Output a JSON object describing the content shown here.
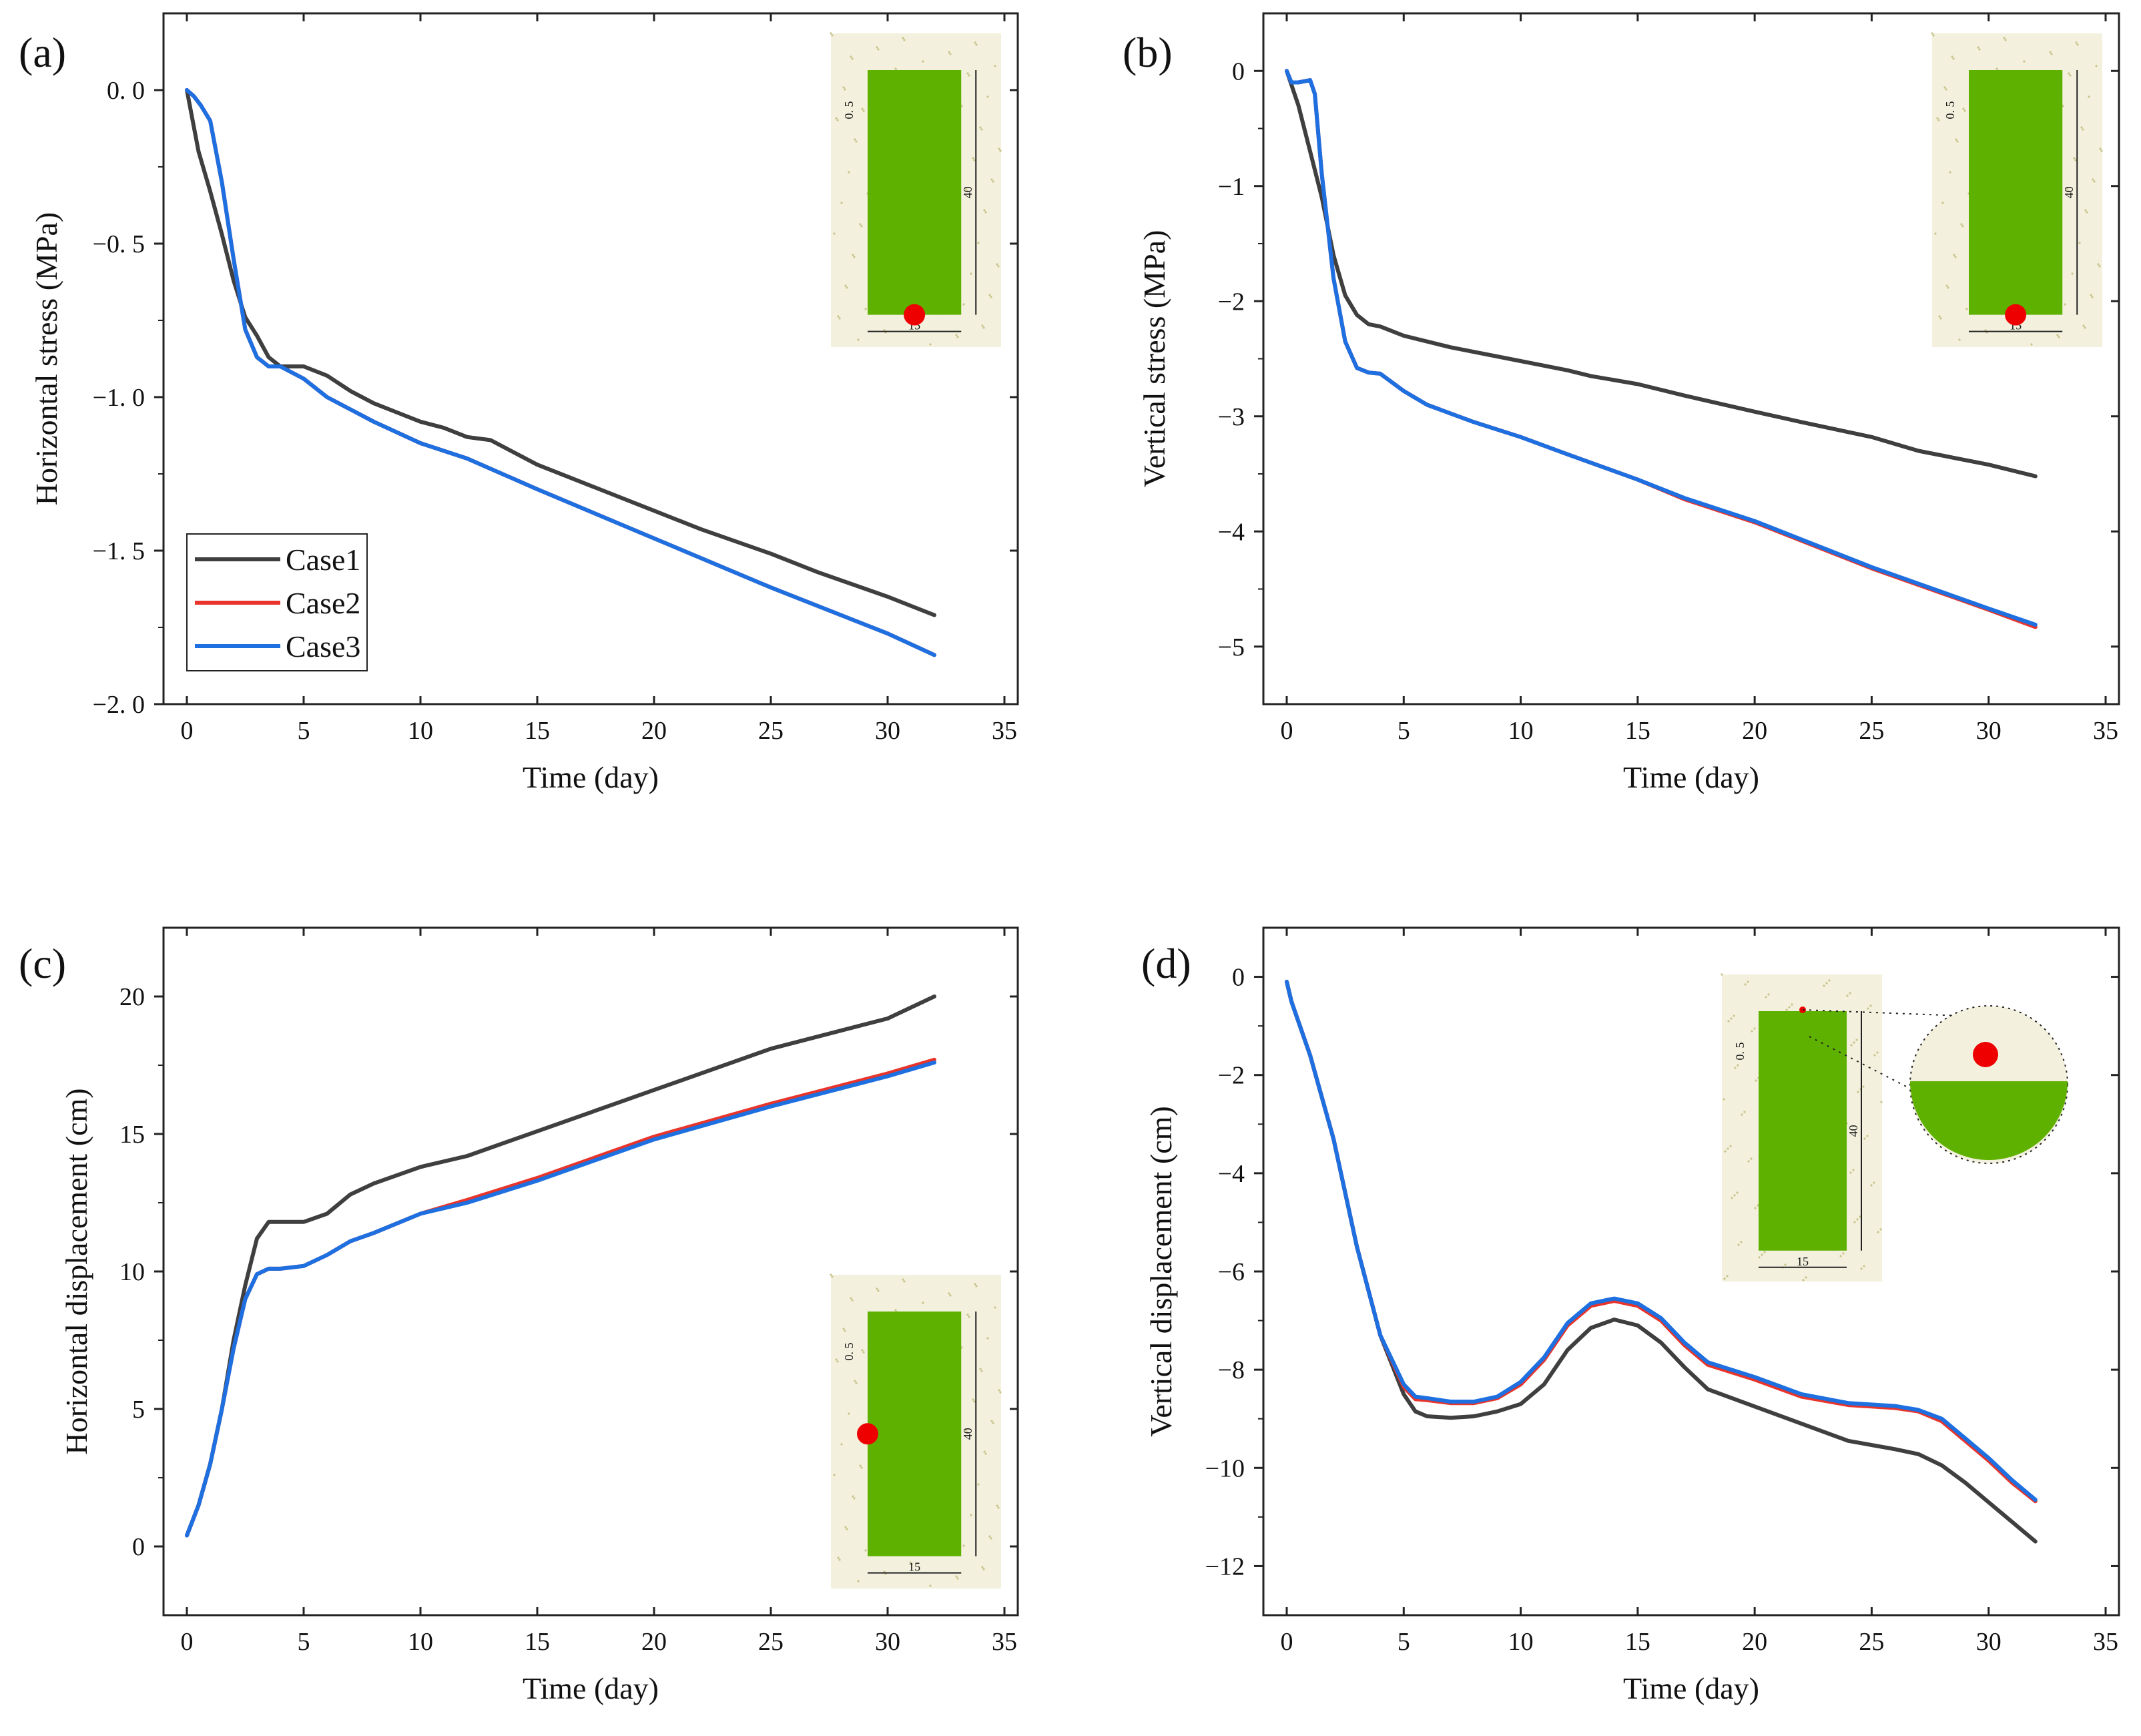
{
  "figure": {
    "colors": {
      "case1": "#3f3f3f",
      "case2": "#e8342a",
      "case3": "#1e6fe0",
      "inset_fill": "#5fb100",
      "marker": "#ee0000",
      "soil": "#c9c48c"
    }
  },
  "chart_data": [
    {
      "type": "line",
      "panel_label": "(a)",
      "xlabel": "Time (day)",
      "ylabel": "Horizontal stress (MPa)",
      "xlim": [
        0,
        35
      ],
      "ylim": [
        -2.0,
        0.25
      ],
      "xticks": [
        0,
        5,
        10,
        15,
        20,
        25,
        30,
        35
      ],
      "yticks": [
        0.0,
        -0.5,
        -1.0,
        -1.5,
        -2.0
      ],
      "xtick_labels": [
        "0",
        "5",
        "10",
        "15",
        "20",
        "25",
        "30",
        "35"
      ],
      "ytick_labels": [
        "0. 0",
        "−0. 5",
        "−1. 0",
        "−1. 5",
        "−2. 0"
      ],
      "legend": {
        "position": "bottom-left",
        "entries": [
          "Case1",
          "Case2",
          "Case3"
        ]
      },
      "inset": {
        "labels": [
          "0. 5",
          "40",
          "15"
        ],
        "marker": "bottom-center"
      },
      "series": [
        {
          "name": "Case1",
          "x": [
            0,
            0.5,
            1,
            1.5,
            2,
            2.5,
            3,
            3.5,
            4,
            5,
            6,
            7,
            8,
            9,
            10,
            11,
            12,
            13,
            15,
            17,
            20,
            22,
            25,
            27,
            30,
            32
          ],
          "y": [
            0,
            -0.2,
            -0.33,
            -0.47,
            -0.62,
            -0.74,
            -0.8,
            -0.87,
            -0.9,
            -0.9,
            -0.93,
            -0.98,
            -1.02,
            -1.05,
            -1.08,
            -1.1,
            -1.13,
            -1.14,
            -1.22,
            -1.28,
            -1.37,
            -1.43,
            -1.51,
            -1.57,
            -1.65,
            -1.71
          ]
        },
        {
          "name": "Case2",
          "x": [
            0,
            0.3,
            0.6,
            1,
            1.5,
            2,
            2.5,
            3,
            3.5,
            4,
            5,
            6,
            7,
            8,
            10,
            12,
            15,
            20,
            25,
            30,
            32
          ],
          "y": [
            0,
            -0.02,
            -0.05,
            -0.1,
            -0.3,
            -0.55,
            -0.78,
            -0.87,
            -0.9,
            -0.9,
            -0.94,
            -1.0,
            -1.04,
            -1.08,
            -1.15,
            -1.2,
            -1.3,
            -1.46,
            -1.62,
            -1.77,
            -1.84
          ]
        },
        {
          "name": "Case3",
          "x": [
            0,
            0.3,
            0.6,
            1,
            1.5,
            2,
            2.5,
            3,
            3.5,
            4,
            5,
            6,
            7,
            8,
            10,
            12,
            15,
            20,
            25,
            30,
            32
          ],
          "y": [
            0,
            -0.02,
            -0.05,
            -0.1,
            -0.3,
            -0.55,
            -0.78,
            -0.87,
            -0.9,
            -0.9,
            -0.94,
            -1.0,
            -1.04,
            -1.08,
            -1.15,
            -1.2,
            -1.3,
            -1.46,
            -1.62,
            -1.77,
            -1.84
          ]
        }
      ]
    },
    {
      "type": "line",
      "panel_label": "(b)",
      "xlabel": "Time (day)",
      "ylabel": "Vertical stress (MPa)",
      "xlim": [
        0,
        35
      ],
      "ylim": [
        -5.5,
        0.5
      ],
      "xticks": [
        0,
        5,
        10,
        15,
        20,
        25,
        30,
        35
      ],
      "yticks": [
        0,
        -1,
        -2,
        -3,
        -4,
        -5
      ],
      "xtick_labels": [
        "0",
        "5",
        "10",
        "15",
        "20",
        "25",
        "30",
        "35"
      ],
      "ytick_labels": [
        "0",
        "−1",
        "−2",
        "−3",
        "−4",
        "−5"
      ],
      "inset": {
        "labels": [
          "0. 5",
          "40",
          "15"
        ],
        "marker": "bottom-center"
      },
      "series": [
        {
          "name": "Case1",
          "x": [
            0,
            0.5,
            1,
            1.5,
            2,
            2.5,
            3,
            3.5,
            4,
            5,
            7,
            10,
            12,
            13,
            15,
            17,
            20,
            22,
            25,
            27,
            30,
            32
          ],
          "y": [
            0,
            -0.3,
            -0.7,
            -1.1,
            -1.6,
            -1.95,
            -2.12,
            -2.2,
            -2.22,
            -2.3,
            -2.4,
            -2.52,
            -2.6,
            -2.65,
            -2.72,
            -2.82,
            -2.96,
            -3.05,
            -3.18,
            -3.3,
            -3.42,
            -3.52
          ]
        },
        {
          "name": "Case2",
          "x": [
            0,
            0.2,
            0.5,
            1,
            1.2,
            1.5,
            2,
            2.5,
            3,
            3.5,
            4,
            5,
            6,
            8,
            10,
            12,
            15,
            17,
            20,
            25,
            30,
            32
          ],
          "y": [
            0,
            -0.1,
            -0.1,
            -0.08,
            -0.2,
            -0.9,
            -1.8,
            -2.35,
            -2.58,
            -2.62,
            -2.63,
            -2.78,
            -2.9,
            -3.05,
            -3.18,
            -3.33,
            -3.55,
            -3.72,
            -3.92,
            -4.32,
            -4.68,
            -4.83
          ]
        },
        {
          "name": "Case3",
          "x": [
            0,
            0.2,
            0.5,
            1,
            1.2,
            1.5,
            2,
            2.5,
            3,
            3.5,
            4,
            5,
            6,
            8,
            10,
            12,
            15,
            17,
            20,
            25,
            30,
            32
          ],
          "y": [
            0,
            -0.1,
            -0.1,
            -0.08,
            -0.2,
            -0.9,
            -1.8,
            -2.35,
            -2.58,
            -2.62,
            -2.63,
            -2.78,
            -2.9,
            -3.05,
            -3.18,
            -3.33,
            -3.55,
            -3.71,
            -3.91,
            -4.31,
            -4.67,
            -4.81
          ]
        }
      ]
    },
    {
      "type": "line",
      "panel_label": "(c)",
      "xlabel": "Time (day)",
      "ylabel": "Horizontal displacement (cm)",
      "xlim": [
        0,
        35
      ],
      "ylim": [
        -2.5,
        22.5
      ],
      "xticks": [
        0,
        5,
        10,
        15,
        20,
        25,
        30,
        35
      ],
      "yticks": [
        0,
        5,
        10,
        15,
        20
      ],
      "xtick_labels": [
        "0",
        "5",
        "10",
        "15",
        "20",
        "25",
        "30",
        "35"
      ],
      "ytick_labels": [
        "0",
        "5",
        "10",
        "15",
        "20"
      ],
      "inset": {
        "labels": [
          "0. 5",
          "40",
          "15"
        ],
        "marker": "middle-left"
      },
      "series": [
        {
          "name": "Case1",
          "x": [
            0,
            0.5,
            1,
            1.5,
            2,
            2.5,
            3,
            3.5,
            4,
            5,
            6,
            7,
            8,
            10,
            12,
            15,
            20,
            25,
            30,
            32
          ],
          "y": [
            0.4,
            1.5,
            3,
            5,
            7.5,
            9.5,
            11.2,
            11.8,
            11.8,
            11.8,
            12.1,
            12.8,
            13.2,
            13.8,
            14.2,
            15.1,
            16.6,
            18.1,
            19.2,
            20
          ]
        },
        {
          "name": "Case2",
          "x": [
            0,
            0.5,
            1,
            1.5,
            2,
            2.5,
            3,
            3.5,
            4,
            5,
            6,
            7,
            8,
            10,
            12,
            15,
            20,
            25,
            30,
            32
          ],
          "y": [
            0.4,
            1.5,
            3,
            5,
            7.2,
            9,
            9.9,
            10.1,
            10.1,
            10.2,
            10.6,
            11.1,
            11.4,
            12.1,
            12.6,
            13.4,
            14.9,
            16.1,
            17.2,
            17.7
          ]
        },
        {
          "name": "Case3",
          "x": [
            0,
            0.5,
            1,
            1.5,
            2,
            2.5,
            3,
            3.5,
            4,
            5,
            6,
            7,
            8,
            10,
            12,
            15,
            20,
            25,
            30,
            32
          ],
          "y": [
            0.4,
            1.5,
            3,
            5,
            7.2,
            9,
            9.9,
            10.1,
            10.1,
            10.2,
            10.6,
            11.1,
            11.4,
            12.1,
            12.5,
            13.3,
            14.8,
            16.0,
            17.1,
            17.6
          ]
        }
      ]
    },
    {
      "type": "line",
      "panel_label": "(d)",
      "xlabel": "Time (day)",
      "ylabel": "Vertical displacement (cm)",
      "xlim": [
        0,
        35
      ],
      "ylim": [
        -13,
        1
      ],
      "xticks": [
        0,
        5,
        10,
        15,
        20,
        25,
        30,
        35
      ],
      "yticks": [
        0,
        -2,
        -4,
        -6,
        -8,
        -10,
        -12
      ],
      "xtick_labels": [
        "0",
        "5",
        "10",
        "15",
        "20",
        "25",
        "30",
        "35"
      ],
      "ytick_labels": [
        "0",
        "−2",
        "−4",
        "−6",
        "−8",
        "−10",
        "−12"
      ],
      "inset": {
        "labels": [
          "0. 5",
          "40",
          "15"
        ],
        "marker": "top-center-zoomed"
      },
      "series": [
        {
          "name": "Case1",
          "x": [
            0,
            0.2,
            1,
            2,
            3,
            4,
            5,
            5.5,
            6,
            7,
            8,
            9,
            10,
            11,
            12,
            13,
            14,
            15,
            16,
            17,
            18,
            20,
            22,
            24,
            26,
            27,
            28,
            29,
            30,
            31,
            32
          ],
          "y": [
            -0.1,
            -0.5,
            -1.6,
            -3.3,
            -5.5,
            -7.3,
            -8.5,
            -8.85,
            -8.95,
            -8.98,
            -8.95,
            -8.85,
            -8.7,
            -8.3,
            -7.6,
            -7.15,
            -6.98,
            -7.1,
            -7.45,
            -7.95,
            -8.4,
            -8.75,
            -9.1,
            -9.45,
            -9.62,
            -9.72,
            -9.95,
            -10.3,
            -10.7,
            -11.1,
            -11.5
          ]
        },
        {
          "name": "Case2",
          "x": [
            0,
            0.2,
            1,
            2,
            3,
            4,
            5,
            5.5,
            6,
            7,
            8,
            9,
            10,
            11,
            12,
            13,
            14,
            15,
            16,
            17,
            18,
            20,
            22,
            24,
            26,
            27,
            28,
            29,
            30,
            31,
            32
          ],
          "y": [
            -0.1,
            -0.5,
            -1.6,
            -3.3,
            -5.5,
            -7.3,
            -8.35,
            -8.6,
            -8.62,
            -8.68,
            -8.68,
            -8.58,
            -8.3,
            -7.8,
            -7.1,
            -6.7,
            -6.6,
            -6.7,
            -7.0,
            -7.5,
            -7.9,
            -8.2,
            -8.55,
            -8.72,
            -8.78,
            -8.85,
            -9.05,
            -9.45,
            -9.85,
            -10.3,
            -10.68
          ]
        },
        {
          "name": "Case3",
          "x": [
            0,
            0.2,
            1,
            2,
            3,
            4,
            5,
            5.5,
            6,
            7,
            8,
            9,
            10,
            11,
            12,
            13,
            14,
            15,
            16,
            17,
            18,
            20,
            22,
            24,
            26,
            27,
            28,
            29,
            30,
            31,
            32
          ],
          "y": [
            -0.1,
            -0.5,
            -1.6,
            -3.3,
            -5.5,
            -7.3,
            -8.3,
            -8.55,
            -8.58,
            -8.65,
            -8.65,
            -8.55,
            -8.25,
            -7.75,
            -7.05,
            -6.65,
            -6.55,
            -6.65,
            -6.95,
            -7.45,
            -7.85,
            -8.15,
            -8.5,
            -8.68,
            -8.74,
            -8.82,
            -9.0,
            -9.4,
            -9.8,
            -10.25,
            -10.65
          ]
        }
      ]
    }
  ]
}
